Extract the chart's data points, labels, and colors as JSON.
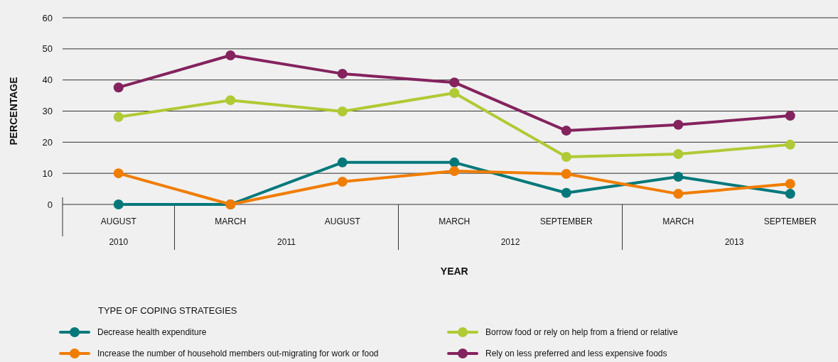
{
  "chart_data": {
    "type": "line",
    "xlabel": "YEAR",
    "ylabel": "PERCENTAGE",
    "legend_title": "TYPE OF COPING STRATEGIES",
    "categories": [
      "AUGUST",
      "MARCH",
      "AUGUST",
      "MARCH",
      "SEPTEMBER",
      "MARCH",
      "SEPTEMBER"
    ],
    "series": [
      {
        "name": "Decrease health expenditure",
        "color": "#00787a",
        "values": [
          0,
          0,
          13.5,
          13.5,
          3.7,
          8.9,
          3.4
        ]
      },
      {
        "name": "Increase the number of household members out-migrating for work or food",
        "color": "#f07d00",
        "values": [
          10,
          0,
          7.3,
          10.7,
          9.8,
          3.4,
          6.6
        ]
      },
      {
        "name": "Borrow food or rely on help from a friend or relative",
        "color": "#afca34",
        "values": [
          28.1,
          33.5,
          29.9,
          35.8,
          15.3,
          16.2,
          19.2
        ]
      },
      {
        "name": "Rely on less preferred and less expensive foods",
        "color": "#84235e",
        "values": [
          37.6,
          47.9,
          42,
          39.2,
          23.7,
          25.6,
          28.5
        ]
      }
    ],
    "annotations": [
      "2010",
      "2011",
      "2012",
      "2013"
    ],
    "ylim": [
      0,
      60
    ],
    "yticks": [
      0,
      10,
      20,
      30,
      40,
      50,
      60
    ],
    "grid": "y",
    "legend": "bottom",
    "marker": "circle",
    "line_style": "solid"
  }
}
